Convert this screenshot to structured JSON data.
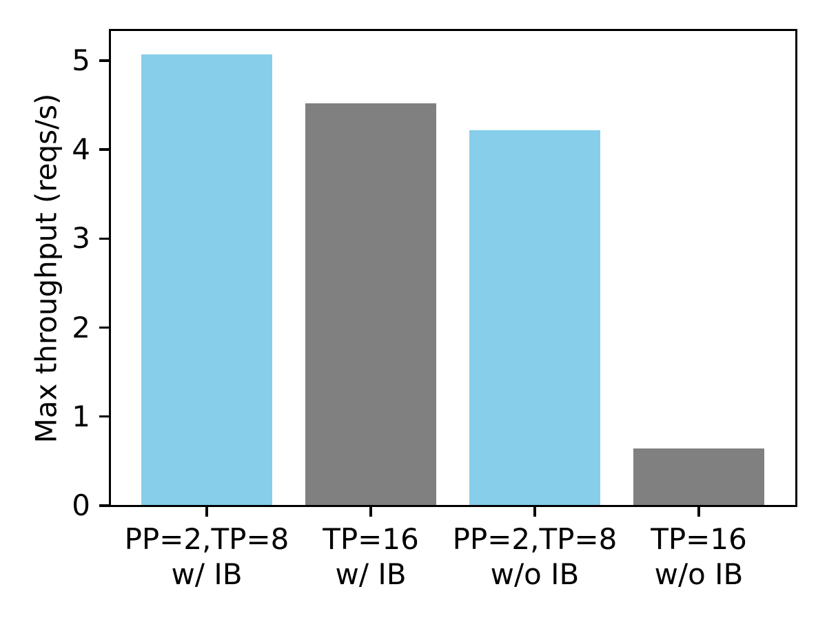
{
  "figure": {
    "background": "#ffffff",
    "text_color": "#000000",
    "axis_color": "#000000"
  },
  "chart_data": {
    "type": "bar",
    "title": "",
    "xlabel": "",
    "ylabel": "Max throughput (reqs/s)",
    "categories": [
      "PP=2,TP=8\nw/ IB",
      "TP=16\nw/ IB",
      "PP=2,TP=8\nw/o IB",
      "TP=16\nw/o IB"
    ],
    "values": [
      5.07,
      4.52,
      4.22,
      0.64
    ],
    "bar_colors": [
      "#87CEEB",
      "#808080",
      "#87CEEB",
      "#808080"
    ],
    "ylim": [
      0,
      5.34
    ],
    "yticks": [
      0,
      1,
      2,
      3,
      4,
      5
    ],
    "grid": false,
    "legend_position": "none"
  }
}
